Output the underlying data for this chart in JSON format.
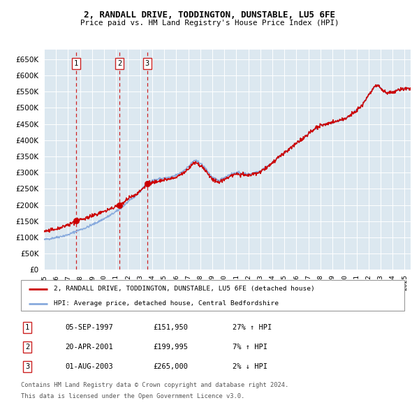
{
  "title": "2, RANDALL DRIVE, TODDINGTON, DUNSTABLE, LU5 6FE",
  "subtitle": "Price paid vs. HM Land Registry's House Price Index (HPI)",
  "background_color": "#ffffff",
  "plot_bg_color": "#dce8f0",
  "ylim": [
    0,
    680000
  ],
  "sales": [
    {
      "date_str": "05-SEP-1997",
      "date_num": 1997.68,
      "price": 151950,
      "label": "1",
      "pct": "27% ↑ HPI"
    },
    {
      "date_str": "20-APR-2001",
      "date_num": 2001.3,
      "price": 199995,
      "label": "2",
      "pct": "7% ↑ HPI"
    },
    {
      "date_str": "01-AUG-2003",
      "date_num": 2003.58,
      "price": 265000,
      "label": "3",
      "pct": "2% ↓ HPI"
    }
  ],
  "red_line_color": "#cc0000",
  "blue_line_color": "#88aadd",
  "dashed_line_color": "#cc0000",
  "legend_label_red": "2, RANDALL DRIVE, TODDINGTON, DUNSTABLE, LU5 6FE (detached house)",
  "legend_label_blue": "HPI: Average price, detached house, Central Bedfordshire",
  "footnote1": "Contains HM Land Registry data © Crown copyright and database right 2024.",
  "footnote2": "This data is licensed under the Open Government Licence v3.0.",
  "xmin": 1995.0,
  "xmax": 2025.5,
  "hpi_anchors": [
    [
      1995.0,
      93000
    ],
    [
      1996.0,
      100000
    ],
    [
      1997.0,
      108000
    ],
    [
      1997.68,
      119600
    ],
    [
      1998.5,
      130000
    ],
    [
      1999.5,
      148000
    ],
    [
      2000.5,
      168000
    ],
    [
      2001.3,
      186900
    ],
    [
      2002.0,
      210000
    ],
    [
      2002.5,
      225000
    ],
    [
      2003.0,
      242000
    ],
    [
      2003.58,
      270400
    ],
    [
      2004.0,
      275000
    ],
    [
      2004.5,
      280000
    ],
    [
      2005.0,
      283000
    ],
    [
      2005.5,
      285000
    ],
    [
      2006.0,
      292000
    ],
    [
      2006.5,
      303000
    ],
    [
      2007.0,
      318000
    ],
    [
      2007.5,
      338000
    ],
    [
      2008.0,
      330000
    ],
    [
      2008.5,
      310000
    ],
    [
      2009.0,
      285000
    ],
    [
      2009.5,
      275000
    ],
    [
      2010.0,
      285000
    ],
    [
      2010.5,
      295000
    ],
    [
      2011.0,
      300000
    ],
    [
      2011.5,
      298000
    ],
    [
      2012.0,
      295000
    ],
    [
      2012.5,
      300000
    ],
    [
      2013.0,
      305000
    ],
    [
      2013.5,
      318000
    ],
    [
      2014.0,
      330000
    ],
    [
      2014.5,
      348000
    ],
    [
      2015.0,
      360000
    ],
    [
      2015.5,
      375000
    ],
    [
      2016.0,
      390000
    ],
    [
      2016.5,
      405000
    ],
    [
      2017.0,
      420000
    ],
    [
      2017.5,
      435000
    ],
    [
      2018.0,
      445000
    ],
    [
      2018.5,
      450000
    ],
    [
      2019.0,
      455000
    ],
    [
      2019.5,
      460000
    ],
    [
      2020.0,
      465000
    ],
    [
      2020.5,
      478000
    ],
    [
      2021.0,
      492000
    ],
    [
      2021.5,
      510000
    ],
    [
      2022.0,
      540000
    ],
    [
      2022.5,
      565000
    ],
    [
      2022.8,
      570000
    ],
    [
      2023.0,
      560000
    ],
    [
      2023.5,
      545000
    ],
    [
      2024.0,
      548000
    ],
    [
      2024.5,
      555000
    ],
    [
      2025.0,
      558000
    ],
    [
      2025.5,
      557000
    ]
  ],
  "red_ratio_anchors": [
    [
      1995.0,
      1.271
    ],
    [
      1997.68,
      1.271
    ],
    [
      2001.3,
      1.07
    ],
    [
      2003.58,
      0.98
    ],
    [
      2010.0,
      0.98
    ],
    [
      2015.0,
      1.0
    ],
    [
      2025.5,
      1.0
    ]
  ]
}
